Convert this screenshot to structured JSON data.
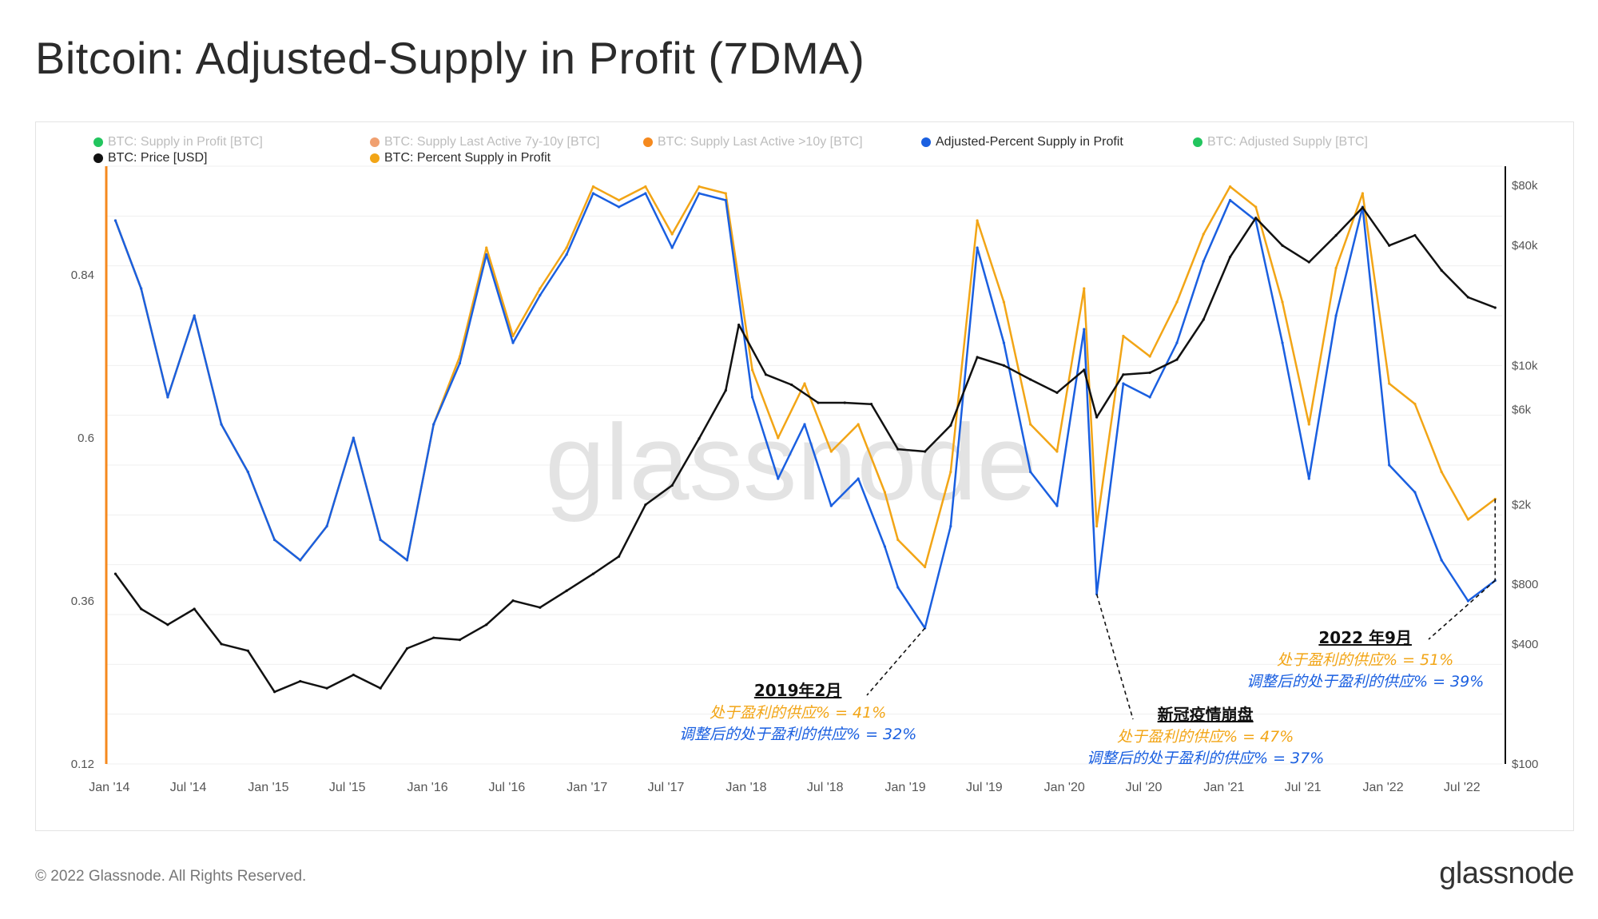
{
  "header": {
    "title": "Bitcoin: Adjusted-Supply in Profit (7DMA)"
  },
  "legend": [
    {
      "label": "BTC: Supply in Profit [BTC]",
      "color": "#22c55e",
      "faded": true
    },
    {
      "label": "BTC: Supply Last Active 7y-10y [BTC]",
      "color": "#f0a070",
      "faded": true
    },
    {
      "label": "BTC: Supply Last Active >10y [BTC]",
      "color": "#f5891e",
      "faded": true
    },
    {
      "label": "Adjusted-Percent Supply in Profit",
      "color": "#1a5fe0",
      "faded": false
    },
    {
      "label": "BTC: Adjusted Supply [BTC]",
      "color": "#22c55e",
      "faded": true
    },
    {
      "label": "BTC: Price [USD]",
      "color": "#111111",
      "faded": false
    },
    {
      "label": "BTC: Percent Supply in Profit",
      "color": "#f2a516",
      "faded": false
    }
  ],
  "watermark": "glassnode",
  "annotations": [
    {
      "heading": "2019年2月",
      "orange": "处于盈利的供应% = 41%",
      "blue": "调整后的处于盈利的供应%  = 32%"
    },
    {
      "heading": "新冠疫情崩盘",
      "orange": "处于盈利的供应% = 47%",
      "blue": "调整后的处于盈利的供应%  = 37%"
    },
    {
      "heading": "2022 年9月",
      "orange": "处于盈利的供应% = 51%",
      "blue": "调整后的处于盈利的供应% = 39%"
    }
  ],
  "footer": {
    "copyright": "© 2022 Glassnode. All Rights Reserved.",
    "brand": "glassnode"
  },
  "chart_data": {
    "type": "line",
    "x_ticks": [
      "Jan '14",
      "Jul '14",
      "Jan '15",
      "Jul '15",
      "Jan '16",
      "Jul '16",
      "Jan '17",
      "Jul '17",
      "Jan '18",
      "Jul '18",
      "Jan '19",
      "Jul '19",
      "Jan '20",
      "Jul '20",
      "Jan '21",
      "Jul '21",
      "Jan '22",
      "Jul '22"
    ],
    "y_left": {
      "ticks": [
        "0.84",
        "0.6",
        "0.36",
        "0.12"
      ],
      "range": [
        0.12,
        1.0
      ]
    },
    "y_right": {
      "scale": "log",
      "ticks": [
        "$80k",
        "$40k",
        "$10k",
        "$6k",
        "$2k",
        "$800",
        "$400",
        "$100"
      ],
      "range": [
        100,
        100000
      ]
    },
    "series": [
      {
        "name": "BTC: Percent Supply in Profit",
        "color": "#f2a516",
        "axis": "left",
        "x": [
          "2014-01",
          "2014-03",
          "2014-05",
          "2014-07",
          "2014-09",
          "2014-11",
          "2015-01",
          "2015-03",
          "2015-05",
          "2015-07",
          "2015-09",
          "2015-11",
          "2016-01",
          "2016-03",
          "2016-05",
          "2016-07",
          "2016-09",
          "2016-11",
          "2017-01",
          "2017-03",
          "2017-05",
          "2017-07",
          "2017-09",
          "2017-11",
          "2018-01",
          "2018-03",
          "2018-05",
          "2018-07",
          "2018-09",
          "2018-11",
          "2018-12",
          "2019-02",
          "2019-04",
          "2019-06",
          "2019-08",
          "2019-10",
          "2019-12",
          "2020-02",
          "2020-03",
          "2020-05",
          "2020-07",
          "2020-09",
          "2020-11",
          "2021-01",
          "2021-03",
          "2021-05",
          "2021-07",
          "2021-09",
          "2021-11",
          "2022-01",
          "2022-03",
          "2022-05",
          "2022-07",
          "2022-09"
        ],
        "values": [
          0.92,
          0.82,
          0.66,
          0.78,
          0.62,
          0.55,
          0.45,
          0.42,
          0.47,
          0.6,
          0.45,
          0.42,
          0.62,
          0.72,
          0.88,
          0.75,
          0.82,
          0.88,
          0.97,
          0.95,
          0.97,
          0.9,
          0.97,
          0.96,
          0.7,
          0.6,
          0.68,
          0.58,
          0.62,
          0.52,
          0.45,
          0.41,
          0.55,
          0.92,
          0.8,
          0.62,
          0.58,
          0.82,
          0.47,
          0.75,
          0.72,
          0.8,
          0.9,
          0.97,
          0.94,
          0.8,
          0.62,
          0.85,
          0.96,
          0.68,
          0.65,
          0.55,
          0.48,
          0.51
        ]
      },
      {
        "name": "Adjusted-Percent Supply in Profit",
        "color": "#1a5fe0",
        "axis": "left",
        "x": [
          "2014-01",
          "2014-03",
          "2014-05",
          "2014-07",
          "2014-09",
          "2014-11",
          "2015-01",
          "2015-03",
          "2015-05",
          "2015-07",
          "2015-09",
          "2015-11",
          "2016-01",
          "2016-03",
          "2016-05",
          "2016-07",
          "2016-09",
          "2016-11",
          "2017-01",
          "2017-03",
          "2017-05",
          "2017-07",
          "2017-09",
          "2017-11",
          "2018-01",
          "2018-03",
          "2018-05",
          "2018-07",
          "2018-09",
          "2018-11",
          "2018-12",
          "2019-02",
          "2019-04",
          "2019-06",
          "2019-08",
          "2019-10",
          "2019-12",
          "2020-02",
          "2020-03",
          "2020-05",
          "2020-07",
          "2020-09",
          "2020-11",
          "2021-01",
          "2021-03",
          "2021-05",
          "2021-07",
          "2021-09",
          "2021-11",
          "2022-01",
          "2022-03",
          "2022-05",
          "2022-07",
          "2022-09"
        ],
        "values": [
          0.92,
          0.82,
          0.66,
          0.78,
          0.62,
          0.55,
          0.45,
          0.42,
          0.47,
          0.6,
          0.45,
          0.42,
          0.62,
          0.71,
          0.87,
          0.74,
          0.81,
          0.87,
          0.96,
          0.94,
          0.96,
          0.88,
          0.96,
          0.95,
          0.66,
          0.54,
          0.62,
          0.5,
          0.54,
          0.44,
          0.38,
          0.32,
          0.47,
          0.88,
          0.74,
          0.55,
          0.5,
          0.76,
          0.37,
          0.68,
          0.66,
          0.74,
          0.86,
          0.95,
          0.92,
          0.74,
          0.54,
          0.78,
          0.94,
          0.56,
          0.52,
          0.42,
          0.36,
          0.39
        ]
      },
      {
        "name": "BTC: Price [USD]",
        "color": "#111111",
        "axis": "right",
        "x": [
          "2014-01",
          "2014-03",
          "2014-05",
          "2014-07",
          "2014-09",
          "2014-11",
          "2015-01",
          "2015-03",
          "2015-05",
          "2015-07",
          "2015-09",
          "2015-11",
          "2016-01",
          "2016-03",
          "2016-05",
          "2016-07",
          "2016-09",
          "2016-11",
          "2017-01",
          "2017-03",
          "2017-05",
          "2017-07",
          "2017-09",
          "2017-11",
          "2017-12",
          "2018-02",
          "2018-04",
          "2018-06",
          "2018-08",
          "2018-10",
          "2018-12",
          "2019-02",
          "2019-04",
          "2019-06",
          "2019-08",
          "2019-10",
          "2019-12",
          "2020-02",
          "2020-03",
          "2020-05",
          "2020-07",
          "2020-09",
          "2020-11",
          "2021-01",
          "2021-03",
          "2021-05",
          "2021-07",
          "2021-09",
          "2021-11",
          "2022-01",
          "2022-03",
          "2022-05",
          "2022-07",
          "2022-09"
        ],
        "values": [
          900,
          600,
          500,
          600,
          400,
          370,
          230,
          260,
          240,
          280,
          240,
          380,
          430,
          420,
          500,
          660,
          610,
          740,
          900,
          1100,
          2000,
          2500,
          4300,
          7500,
          16000,
          9000,
          8000,
          6500,
          6500,
          6400,
          3800,
          3700,
          5000,
          11000,
          10000,
          8500,
          7300,
          9500,
          5500,
          9000,
          9200,
          10700,
          17000,
          35000,
          55000,
          40000,
          33000,
          45000,
          62000,
          40000,
          45000,
          30000,
          22000,
          19500
        ]
      }
    ]
  }
}
